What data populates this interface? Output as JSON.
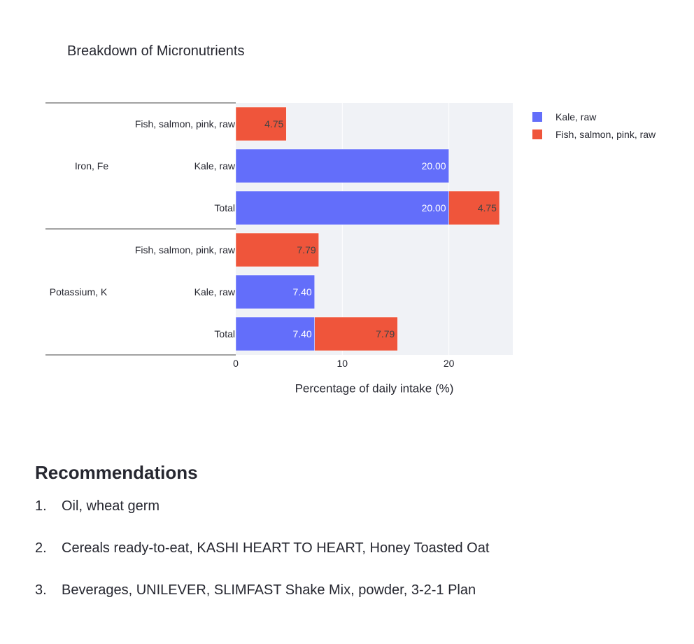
{
  "chart_data": {
    "type": "bar",
    "orientation": "horizontal",
    "barmode": "stack",
    "title": "Breakdown of Micronutrients",
    "xlabel": "Percentage of daily intake (%)",
    "ylabel": "",
    "xlim": [
      0,
      26
    ],
    "xticks": [
      0,
      10,
      20
    ],
    "grid": true,
    "legend_position": "top-right",
    "groups": [
      {
        "name": "Iron, Fe",
        "rows": [
          "Fish, salmon, pink, raw",
          "Kale, raw",
          "Total"
        ]
      },
      {
        "name": "Potassium, K",
        "rows": [
          "Fish, salmon, pink, raw",
          "Kale, raw",
          "Total"
        ]
      }
    ],
    "series": [
      {
        "name": "Kale, raw",
        "color": "#636efa",
        "values": [
          [
            0,
            20.0,
            20.0
          ],
          [
            0,
            7.4,
            7.4
          ]
        ],
        "labels": [
          [
            "",
            "20.00",
            "20.00"
          ],
          [
            "",
            "7.40",
            "7.40"
          ]
        ]
      },
      {
        "name": "Fish, salmon, pink, raw",
        "color": "#ef553b",
        "values": [
          [
            4.75,
            0,
            4.75
          ],
          [
            7.79,
            0,
            7.79
          ]
        ],
        "labels": [
          [
            "4.75",
            "",
            "4.75"
          ],
          [
            "7.79",
            "",
            "7.79"
          ]
        ]
      }
    ]
  },
  "recommendations": {
    "heading": "Recommendations",
    "items": [
      {
        "num": "1.",
        "text": "Oil, wheat germ"
      },
      {
        "num": "2.",
        "text": "Cereals ready-to-eat, KASHI HEART TO HEART, Honey Toasted Oat"
      },
      {
        "num": "3.",
        "text": "Beverages, UNILEVER, SLIMFAST Shake Mix, powder, 3-2-1 Plan"
      }
    ]
  }
}
